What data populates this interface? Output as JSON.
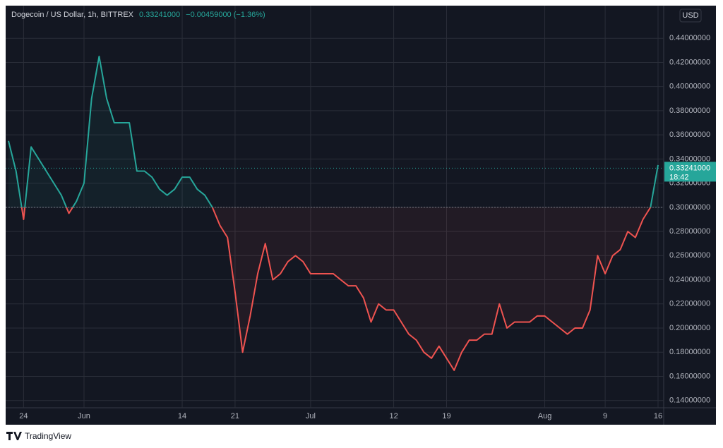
{
  "chart_data": {
    "type": "line",
    "title": "Dogecoin / US Dollar, 1h, BITTREX",
    "last_price": {
      "value": 0.33241,
      "label": "0.33241000"
    },
    "change": "−0.00459000 (−1.36%)",
    "countdown": "18:42",
    "currency": "USD",
    "brand": "TradingView",
    "baseline": 0.3,
    "up_color": "#26a69a",
    "down_color": "#ef5350",
    "grid": true,
    "categories": [
      null,
      null,
      "24",
      null,
      null,
      null,
      null,
      null,
      null,
      null,
      "Jun",
      null,
      null,
      null,
      null,
      null,
      null,
      null,
      null,
      null,
      null,
      null,
      null,
      "14",
      null,
      null,
      null,
      null,
      null,
      null,
      "21",
      null,
      null,
      null,
      null,
      null,
      null,
      null,
      null,
      null,
      "Jul",
      null,
      null,
      null,
      null,
      null,
      null,
      null,
      null,
      null,
      null,
      "12",
      null,
      null,
      null,
      null,
      null,
      null,
      "19",
      null,
      null,
      null,
      null,
      null,
      null,
      null,
      null,
      null,
      null,
      null,
      null,
      "Aug",
      null,
      null,
      null,
      null,
      null,
      null,
      null,
      "9",
      null,
      null,
      null,
      null,
      null,
      null,
      "16"
    ],
    "values": [
      0.355,
      0.33,
      0.29,
      0.35,
      0.34,
      0.33,
      0.32,
      0.31,
      0.295,
      0.305,
      0.32,
      0.39,
      0.425,
      0.39,
      0.37,
      0.37,
      0.37,
      0.33,
      0.33,
      0.325,
      0.315,
      0.31,
      0.315,
      0.325,
      0.325,
      0.315,
      0.31,
      0.3,
      0.285,
      0.275,
      0.23,
      0.18,
      0.21,
      0.245,
      0.27,
      0.24,
      0.245,
      0.255,
      0.26,
      0.255,
      0.245,
      0.245,
      0.245,
      0.245,
      0.24,
      0.235,
      0.235,
      0.225,
      0.205,
      0.22,
      0.215,
      0.215,
      0.205,
      0.195,
      0.19,
      0.18,
      0.175,
      0.185,
      0.175,
      0.165,
      0.18,
      0.19,
      0.19,
      0.195,
      0.195,
      0.22,
      0.2,
      0.205,
      0.205,
      0.205,
      0.21,
      0.21,
      0.205,
      0.2,
      0.195,
      0.2,
      0.2,
      0.215,
      0.26,
      0.245,
      0.26,
      0.265,
      0.28,
      0.275,
      0.29,
      0.3,
      0.335
    ],
    "ylim": [
      0.134,
      0.467
    ],
    "yticks": [
      {
        "value": 0.14,
        "label": "0.14000000"
      },
      {
        "value": 0.16,
        "label": "0.16000000"
      },
      {
        "value": 0.18,
        "label": "0.18000000"
      },
      {
        "value": 0.2,
        "label": "0.20000000"
      },
      {
        "value": 0.22,
        "label": "0.22000000"
      },
      {
        "value": 0.24,
        "label": "0.24000000"
      },
      {
        "value": 0.26,
        "label": "0.26000000"
      },
      {
        "value": 0.28,
        "label": "0.28000000"
      },
      {
        "value": 0.3,
        "label": "0.30000000"
      },
      {
        "value": 0.32,
        "label": "0.32000000"
      },
      {
        "value": 0.34,
        "label": "0.34000000"
      },
      {
        "value": 0.36,
        "label": "0.36000000"
      },
      {
        "value": 0.38,
        "label": "0.38000000"
      },
      {
        "value": 0.4,
        "label": "0.40000000"
      },
      {
        "value": 0.42,
        "label": "0.42000000"
      },
      {
        "value": 0.44,
        "label": "0.44000000"
      }
    ]
  }
}
